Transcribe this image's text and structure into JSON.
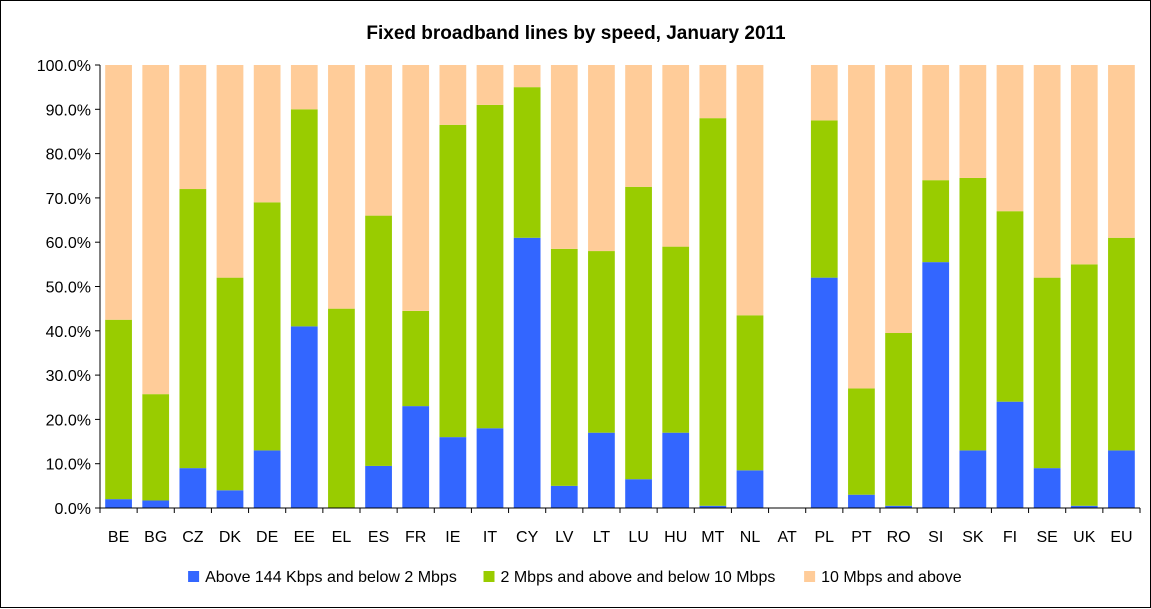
{
  "chart_data": {
    "type": "bar",
    "stacked": true,
    "title": "Fixed broadband lines by speed, January 2011",
    "xlabel": "",
    "ylabel": "",
    "ylim": [
      0,
      100
    ],
    "yticks": [
      "0.0%",
      "10.0%",
      "20.0%",
      "30.0%",
      "40.0%",
      "50.0%",
      "60.0%",
      "70.0%",
      "80.0%",
      "90.0%",
      "100.0%"
    ],
    "grid": false,
    "legend_position": "bottom",
    "categories": [
      "BE",
      "BG",
      "CZ",
      "DK",
      "DE",
      "EE",
      "EL",
      "ES",
      "FR",
      "IE",
      "IT",
      "CY",
      "LV",
      "LT",
      "LU",
      "HU",
      "MT",
      "NL",
      "AT",
      "PL",
      "PT",
      "RO",
      "SI",
      "SK",
      "FI",
      "SE",
      "UK",
      "EU"
    ],
    "series": [
      {
        "name": "Above 144 Kbps and below 2 Mbps",
        "color": "#3366ff",
        "values": [
          2.0,
          1.7,
          9.0,
          4.0,
          13.0,
          41.0,
          0.0,
          9.5,
          23.0,
          16.0,
          18.0,
          61.0,
          5.0,
          17.0,
          6.5,
          17.0,
          0.5,
          8.5,
          0.0,
          52.0,
          3.0,
          0.5,
          55.5,
          13.0,
          24.0,
          9.0,
          0.5,
          13.0
        ]
      },
      {
        "name": "2 Mbps and above and below 10 Mbps",
        "color": "#99cc00",
        "values": [
          40.5,
          24.0,
          63.0,
          48.0,
          56.0,
          49.0,
          45.0,
          56.5,
          21.5,
          70.5,
          73.0,
          34.0,
          53.5,
          41.0,
          66.0,
          42.0,
          87.5,
          35.0,
          0.0,
          35.5,
          24.0,
          39.0,
          18.5,
          61.5,
          43.0,
          43.0,
          54.5,
          48.0
        ]
      },
      {
        "name": "10 Mbps and above",
        "color": "#ffcc99",
        "values": [
          57.5,
          74.3,
          28.0,
          48.0,
          31.0,
          10.0,
          55.0,
          34.0,
          55.5,
          13.5,
          9.0,
          5.0,
          41.5,
          42.0,
          27.5,
          41.0,
          12.0,
          56.5,
          0.0,
          12.5,
          73.0,
          60.5,
          26.0,
          25.5,
          33.0,
          48.0,
          45.0,
          39.0
        ]
      }
    ]
  }
}
